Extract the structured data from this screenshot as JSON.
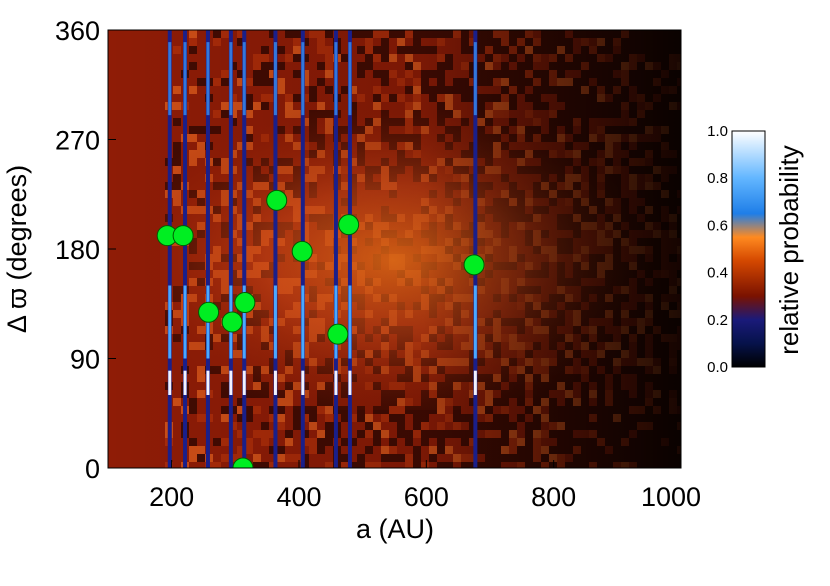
{
  "chart_data": {
    "type": "heatmap",
    "title": "",
    "xlabel": "a (AU)",
    "ylabel": "Δ ϖ (degrees)",
    "xlim": [
      100,
      1000
    ],
    "ylim": [
      0,
      360
    ],
    "xticks": [
      200,
      400,
      600,
      800,
      1000
    ],
    "yticks": [
      0,
      90,
      180,
      270,
      360
    ],
    "colorbar": {
      "label": "relative probability",
      "range": [
        0.0,
        1.0
      ],
      "ticks": [
        "0.0",
        "0.2",
        "0.4",
        "0.6",
        "0.8",
        "1.0"
      ],
      "colors": [
        "#000000",
        "#0a1a6e",
        "#8a1a00",
        "#ff6a00",
        "#3aa0ff",
        "#ffffff"
      ]
    },
    "heatmap_description": "density concentrated near delta-varpi 180 deg across a 300-650 AU, fading toward 0/360 and beyond 800 AU",
    "tracks": [
      {
        "x": 197
      },
      {
        "x": 221
      },
      {
        "x": 257
      },
      {
        "x": 293
      },
      {
        "x": 314
      },
      {
        "x": 363
      },
      {
        "x": 406
      },
      {
        "x": 458
      },
      {
        "x": 480
      },
      {
        "x": 677
      }
    ],
    "points": [
      {
        "x": 193,
        "y": 191
      },
      {
        "x": 218,
        "y": 191
      },
      {
        "x": 258,
        "y": 128
      },
      {
        "x": 295,
        "y": 120
      },
      {
        "x": 315,
        "y": 136
      },
      {
        "x": 365,
        "y": 220
      },
      {
        "x": 405,
        "y": 178
      },
      {
        "x": 461,
        "y": 110
      },
      {
        "x": 478,
        "y": 200
      },
      {
        "x": 675,
        "y": 167
      },
      {
        "x": 312,
        "y": 0
      }
    ],
    "point_color": "#00ee22"
  }
}
